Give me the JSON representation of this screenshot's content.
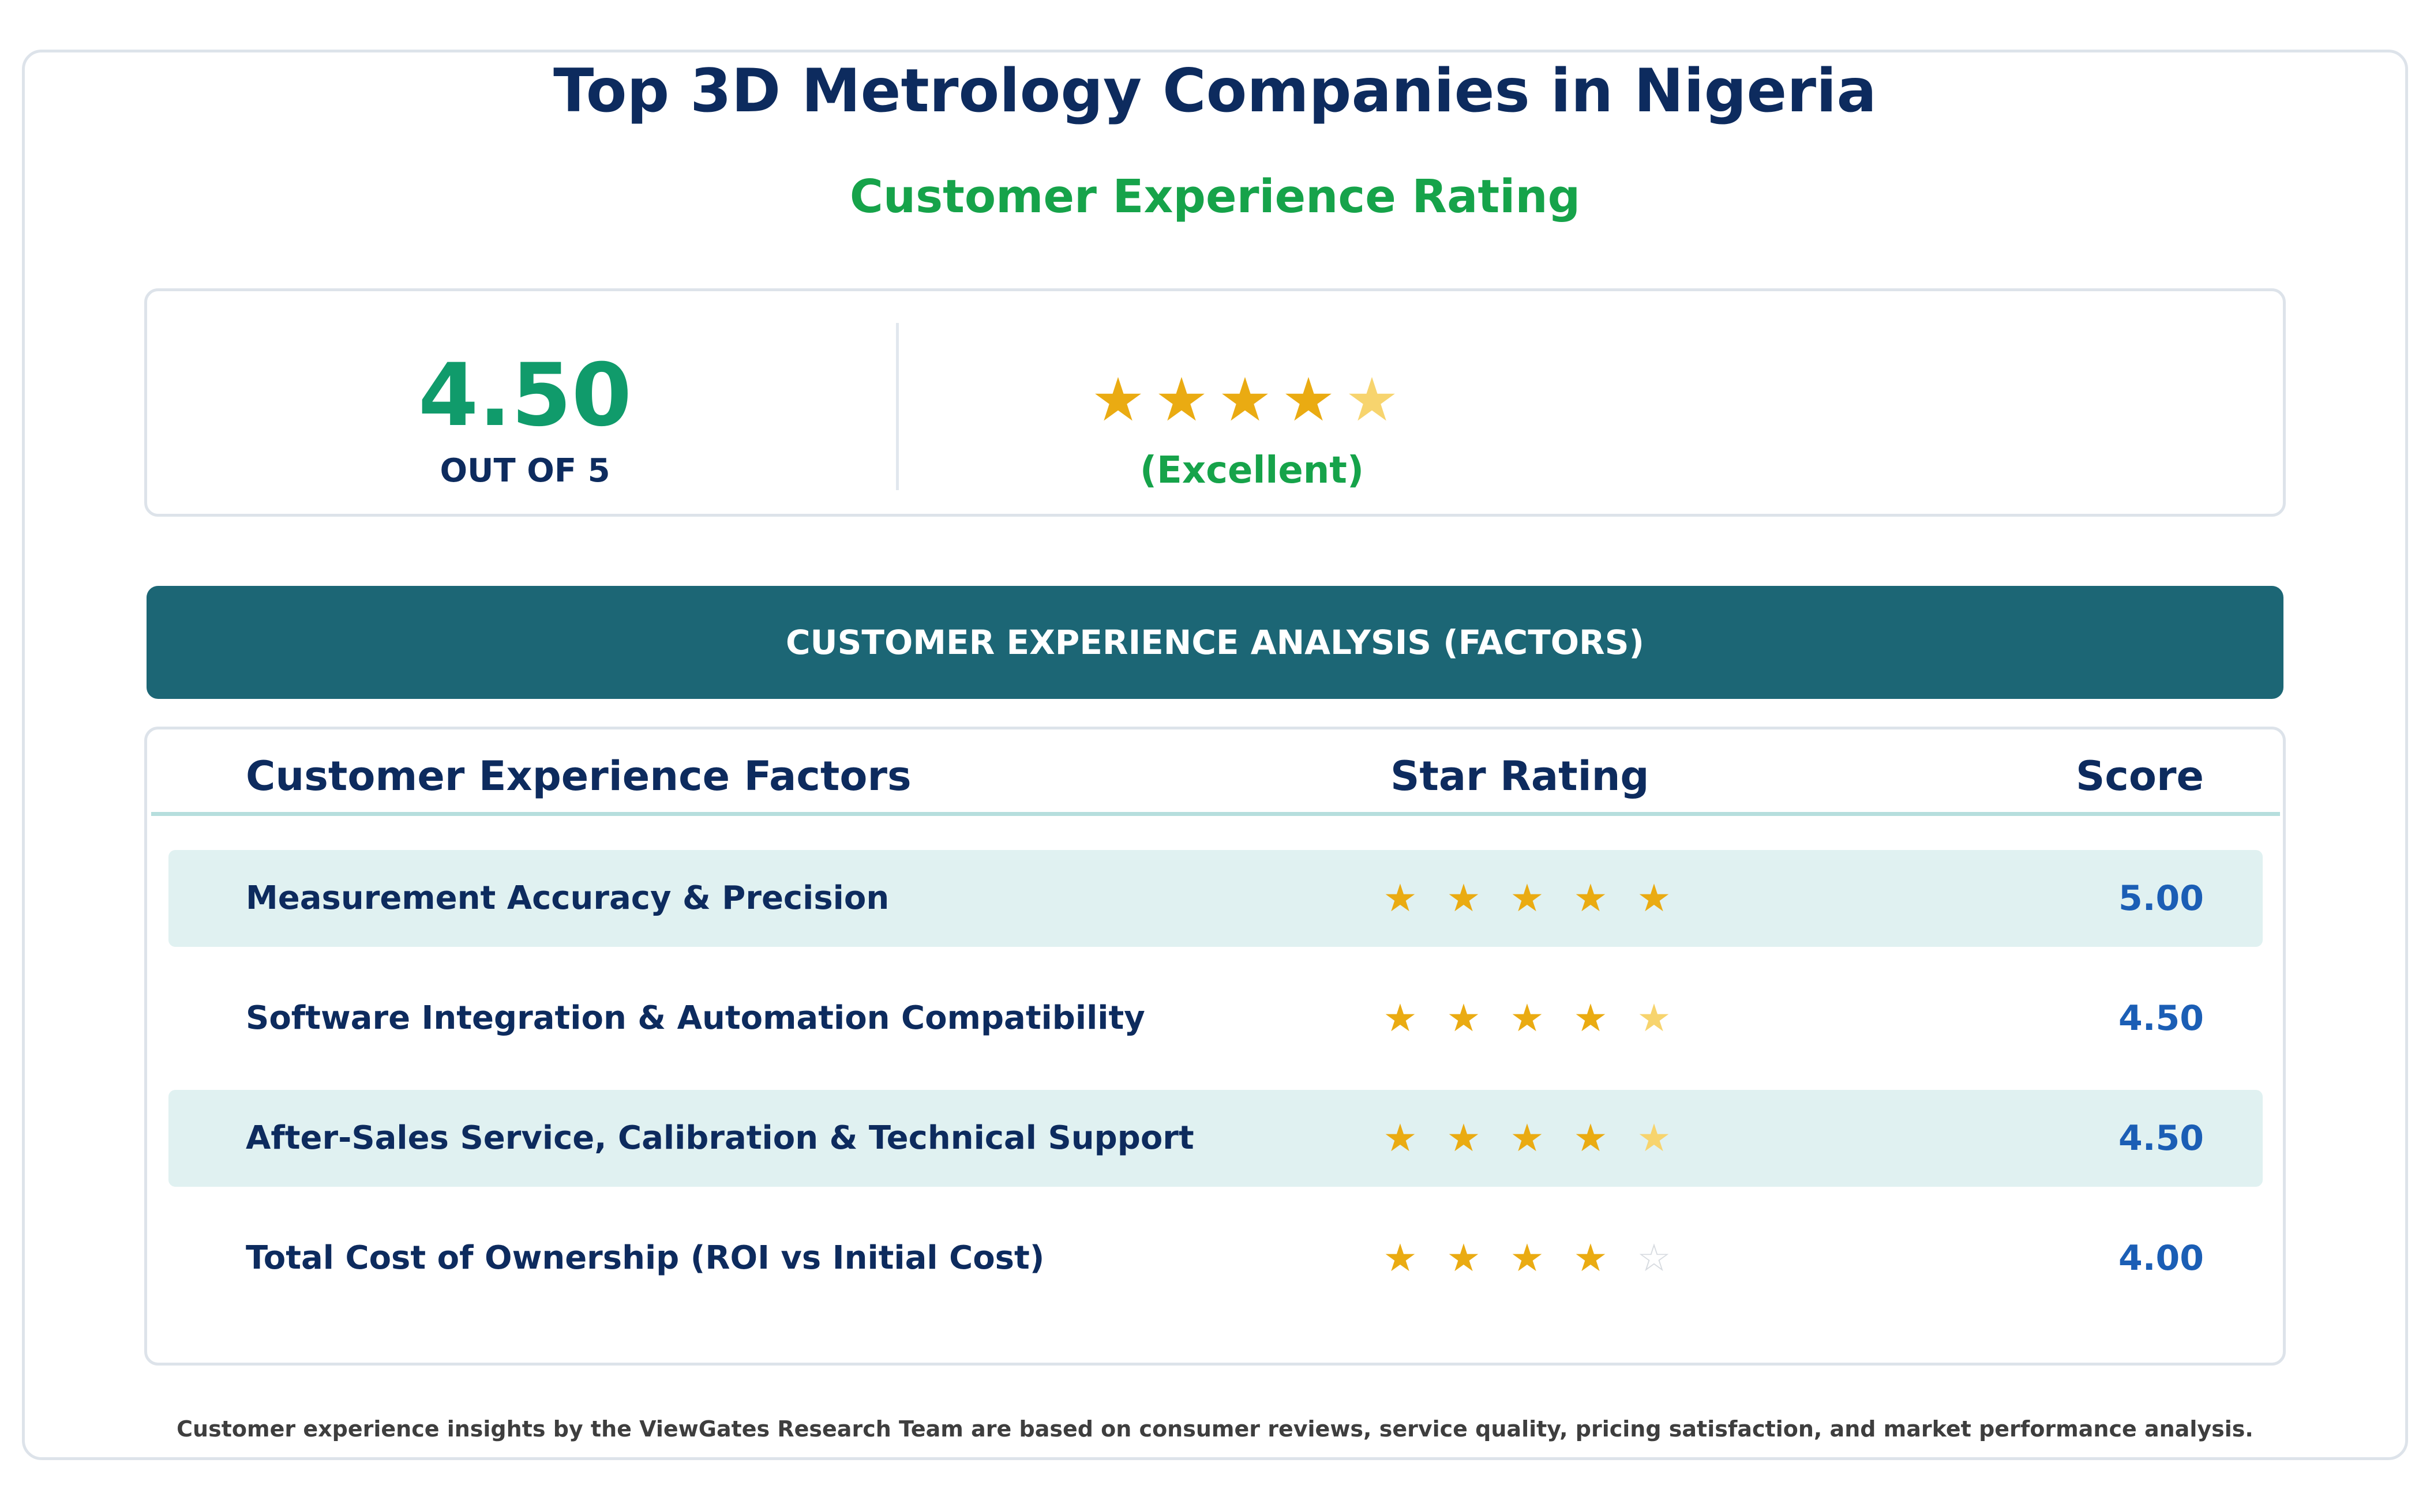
{
  "header": {
    "title": "Top 3D Metrology Companies in Nigeria",
    "subtitle": "Customer Experience Rating"
  },
  "summary": {
    "score": "4.50",
    "out_of": "OUT OF 5",
    "rating_label": "(Excellent)",
    "stars_value": 4.5,
    "stars_max": 5
  },
  "section": {
    "banner": "CUSTOMER EXPERIENCE ANALYSIS (FACTORS)"
  },
  "table": {
    "headers": {
      "factor": "Customer Experience Factors",
      "stars": "Star Rating",
      "score": "Score"
    },
    "rows": [
      {
        "factor": "Measurement Accuracy & Precision",
        "stars_value": 5.0,
        "score": "5.00"
      },
      {
        "factor": "Software Integration & Automation Compatibility",
        "stars_value": 4.5,
        "score": "4.50"
      },
      {
        "factor": "After-Sales Service, Calibration & Technical Support",
        "stars_value": 4.5,
        "score": "4.50"
      },
      {
        "factor": "Total Cost of Ownership (ROI vs Initial Cost)",
        "stars_value": 4.0,
        "score": "4.00"
      }
    ]
  },
  "footer": {
    "note": "Customer experience insights by the ViewGates Research Team are based on consumer reviews, service quality, pricing satisfaction, and market performance analysis."
  },
  "icons": {
    "full_star": "star-filled-icon",
    "half_star": "star-half-icon",
    "empty_star": "star-outline-icon"
  },
  "colors": {
    "title": "#0d2b5e",
    "accent_green": "#16a34a",
    "score_green": "#109b6b",
    "banner": "#1c6675",
    "star": "#eaab12",
    "star_half": "#f7d46e",
    "score_blue": "#1b5eb5",
    "row_shade": "#e0f1f1"
  }
}
